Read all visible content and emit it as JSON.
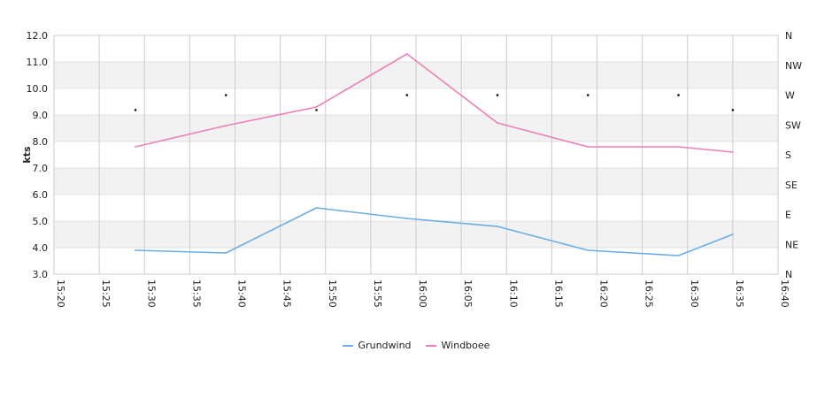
{
  "chart_data": {
    "type": "line",
    "ylabel": "kts",
    "ylim": [
      3.0,
      12.0
    ],
    "yticks": [
      "3.0",
      "4.0",
      "5.0",
      "6.0",
      "7.0",
      "8.0",
      "9.0",
      "10.0",
      "11.0",
      "12.0"
    ],
    "xlim": [
      "15:20",
      "16:40"
    ],
    "xticks": [
      "15:20",
      "15:25",
      "15:30",
      "15:35",
      "15:40",
      "15:45",
      "15:50",
      "15:55",
      "16:00",
      "16:05",
      "16:10",
      "16:15",
      "16:20",
      "16:25",
      "16:30",
      "16:35",
      "16:40"
    ],
    "direction_ticks": [
      "N",
      "NE",
      "E",
      "SE",
      "S",
      "SW",
      "W",
      "NW",
      "N"
    ],
    "grid": true,
    "legend_position": "bottom",
    "series": [
      {
        "name": "Grundwind",
        "color": "#6aaee8",
        "x": [
          "15:29",
          "15:39",
          "15:49",
          "15:59",
          "16:09",
          "16:19",
          "16:29",
          "16:35"
        ],
        "values": [
          3.9,
          3.8,
          5.5,
          5.1,
          4.8,
          3.9,
          3.7,
          4.5
        ]
      },
      {
        "name": "Windboee",
        "color": "#ef7fb6",
        "x": [
          "15:29",
          "15:39",
          "15:49",
          "15:59",
          "16:09",
          "16:19",
          "16:29",
          "16:35"
        ],
        "values": [
          7.8,
          8.6,
          9.3,
          11.3,
          8.7,
          7.8,
          7.8,
          7.6
        ]
      }
    ],
    "wind_direction": {
      "x": [
        "15:29",
        "15:39",
        "15:49",
        "15:59",
        "16:09",
        "16:19",
        "16:29",
        "16:35"
      ],
      "deg": [
        247.5,
        270,
        247.5,
        270,
        270,
        270,
        270,
        247.5
      ]
    }
  }
}
